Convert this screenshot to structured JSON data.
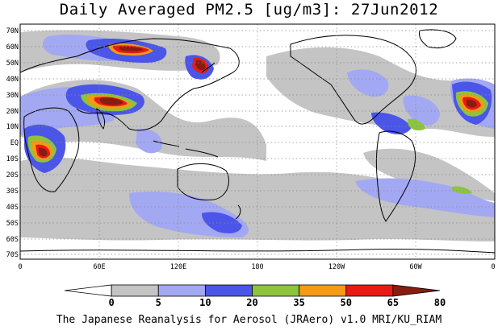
{
  "title": "Daily Averaged PM2.5 [ug/m3]: 27Jun2012",
  "footer": "The Japanese Reanalysis for Aerosol (JRAero) v1.0 MRI/KU_RIAM",
  "map": {
    "lat_labels": [
      "70N",
      "60N",
      "50N",
      "40N",
      "30N",
      "20N",
      "10N",
      "EQ",
      "10S",
      "20S",
      "30S",
      "40S",
      "50S",
      "60S",
      "70S"
    ],
    "lon_labels": [
      "0",
      "60E",
      "120E",
      "180",
      "120W",
      "60W",
      "0"
    ]
  },
  "colorbar": {
    "levels": [
      "0",
      "5",
      "10",
      "20",
      "35",
      "50",
      "65",
      "80"
    ],
    "colors": [
      "#ffffff",
      "#c4c4c4",
      "#a3a8f2",
      "#4b55e8",
      "#8cc43c",
      "#f59a14",
      "#e81a14",
      "#871c12"
    ]
  },
  "colors": {
    "coast": "#000000",
    "grid": "#8a8a8a"
  }
}
